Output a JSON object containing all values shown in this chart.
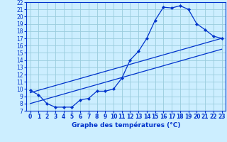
{
  "title": "Graphe des températures (°C)",
  "bg_color": "#cceeff",
  "grid_color": "#99ccdd",
  "line_color": "#0033cc",
  "marker_color": "#0033cc",
  "xlim": [
    -0.5,
    23.5
  ],
  "ylim": [
    7,
    22
  ],
  "xticks": [
    0,
    1,
    2,
    3,
    4,
    5,
    6,
    7,
    8,
    9,
    10,
    11,
    12,
    13,
    14,
    15,
    16,
    17,
    18,
    19,
    20,
    21,
    22,
    23
  ],
  "yticks": [
    7,
    8,
    9,
    10,
    11,
    12,
    13,
    14,
    15,
    16,
    17,
    18,
    19,
    20,
    21,
    22
  ],
  "curve1_x": [
    0,
    1,
    2,
    3,
    4,
    5,
    6,
    7,
    8,
    9,
    10,
    11,
    12,
    13,
    14,
    15,
    16,
    17,
    18,
    19,
    20,
    21,
    22,
    23
  ],
  "curve1_y": [
    9.8,
    9.2,
    8.0,
    7.5,
    7.5,
    7.5,
    8.5,
    8.7,
    9.7,
    9.7,
    10.0,
    11.5,
    14.0,
    15.2,
    17.0,
    19.5,
    21.3,
    21.2,
    21.5,
    21.0,
    19.0,
    18.2,
    17.3,
    17.0
  ],
  "curve2_x": [
    0,
    23
  ],
  "curve2_y": [
    9.5,
    17.0
  ],
  "curve3_x": [
    0,
    23
  ],
  "curve3_y": [
    8.0,
    15.5
  ],
  "ytick_fontsize": 5.5,
  "xtick_fontsize": 5.5,
  "title_fontsize": 6.5
}
